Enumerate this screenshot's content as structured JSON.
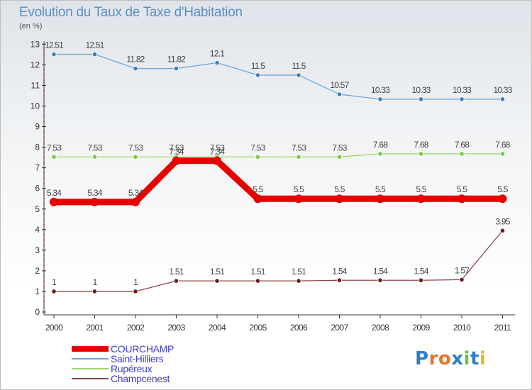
{
  "title": "Evolution du Taux de Taxe d'Habitation",
  "unit_label": "(en %)",
  "logo": {
    "text": "Proxiti",
    "colors": [
      "#2f7fc8",
      "#e8732a",
      "#e8732a",
      "#2f7fc8",
      "#7bbf3a",
      "#2f7fc8",
      "#e8b52a"
    ]
  },
  "chart_data": {
    "type": "line",
    "title": "Evolution du Taux de Taxe d'Habitation",
    "ylabel": "(en %)",
    "xlabel": "",
    "x": [
      "2000",
      "2001",
      "2002",
      "2003",
      "2004",
      "2005",
      "2006",
      "2007",
      "2008",
      "2009",
      "2010",
      "2011"
    ],
    "ylim": [
      0,
      13
    ],
    "yticks": [
      0,
      1,
      2,
      3,
      4,
      5,
      6,
      7,
      8,
      9,
      10,
      11,
      12,
      13
    ],
    "grid": false,
    "series": [
      {
        "name": "COURCHAMP",
        "color": "#e80000",
        "emphasis": true,
        "values": [
          5.34,
          5.34,
          5.34,
          7.34,
          7.34,
          5.5,
          5.5,
          5.5,
          5.5,
          5.5,
          5.5,
          5.5
        ],
        "labels": [
          "5.34",
          "5.34",
          "5.34",
          "7.34",
          "7.34",
          "5.5",
          "5.5",
          "5.5",
          "5.5",
          "5.5",
          "5.5",
          "5.5"
        ]
      },
      {
        "name": "Saint-Hilliers",
        "color": "#6ea6d6",
        "marker": "#3f7fb8",
        "values": [
          12.51,
          12.51,
          11.82,
          11.82,
          12.1,
          11.5,
          11.5,
          10.57,
          10.33,
          10.33,
          10.33,
          10.33
        ],
        "labels": [
          "12.51",
          "12.51",
          "11.82",
          "11.82",
          "12.1",
          "11.5",
          "11.5",
          "10.57",
          "10.33",
          "10.33",
          "10.33",
          "10.33"
        ]
      },
      {
        "name": "Rupéreux",
        "color": "#9ad86a",
        "marker": "#7cc84a",
        "values": [
          7.53,
          7.53,
          7.53,
          7.53,
          7.53,
          7.53,
          7.53,
          7.53,
          7.68,
          7.68,
          7.68,
          7.68
        ],
        "labels": [
          "7.53",
          "7.53",
          "7.53",
          "7.53",
          "7.53",
          "7.53",
          "7.53",
          "7.53",
          "7.68",
          "7.68",
          "7.68",
          "7.68"
        ]
      },
      {
        "name": "Champcenest",
        "color": "#8a4a4a",
        "marker": "#6b1f1f",
        "values": [
          1,
          1,
          1,
          1.51,
          1.51,
          1.51,
          1.51,
          1.54,
          1.54,
          1.54,
          1.57,
          3.95
        ],
        "labels": [
          "1",
          "1",
          "1",
          "1.51",
          "1.51",
          "1.51",
          "1.51",
          "1.54",
          "1.54",
          "1.54",
          "1.57",
          "3.95"
        ]
      }
    ],
    "legend": {
      "position": "bottom-left"
    }
  }
}
